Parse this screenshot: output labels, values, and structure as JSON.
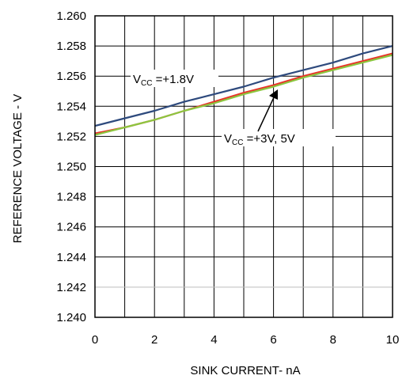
{
  "chart_data": {
    "type": "line",
    "title": "",
    "xlabel": "SINK CURRENT- nA",
    "ylabel": "REFERENCE VOLTAGE - V",
    "xlim": [
      0,
      10
    ],
    "ylim": [
      1.24,
      1.26
    ],
    "x_ticks": [
      "0",
      "2",
      "4",
      "6",
      "8",
      "10"
    ],
    "y_ticks": [
      "1.240",
      "1.242",
      "1.244",
      "1.246",
      "1.248",
      "1.250",
      "1.252",
      "1.254",
      "1.256",
      "1.258",
      "1.260"
    ],
    "grid": true,
    "series": [
      {
        "color": "#2e4a7d",
        "x": [
          0,
          1,
          2,
          3,
          4,
          5,
          6,
          7,
          8,
          9,
          10
        ],
        "values": [
          1.2527,
          1.2532,
          1.2537,
          1.2543,
          1.2548,
          1.2553,
          1.2559,
          1.2564,
          1.2569,
          1.2575,
          1.258
        ]
      },
      {
        "color": "#e8342a",
        "x": [
          0,
          1,
          2,
          3,
          4,
          5,
          6,
          7,
          8,
          9,
          10
        ],
        "values": [
          1.2522,
          1.2526,
          1.2531,
          1.2537,
          1.2543,
          1.2549,
          1.2554,
          1.256,
          1.2565,
          1.257,
          1.2575
        ]
      },
      {
        "color": "#8cc63f",
        "x": [
          0,
          1,
          2,
          3,
          4,
          5,
          6,
          7,
          8,
          9,
          10
        ],
        "values": [
          1.2521,
          1.2526,
          1.2531,
          1.2537,
          1.2542,
          1.2548,
          1.2553,
          1.2559,
          1.2564,
          1.2569,
          1.2574
        ]
      }
    ],
    "annotations": [
      {
        "main": "V",
        "sub": "CC",
        "rest": " =+1.8V"
      },
      {
        "main": "V",
        "sub": "CC",
        "rest": " =+3V, 5V"
      }
    ]
  }
}
